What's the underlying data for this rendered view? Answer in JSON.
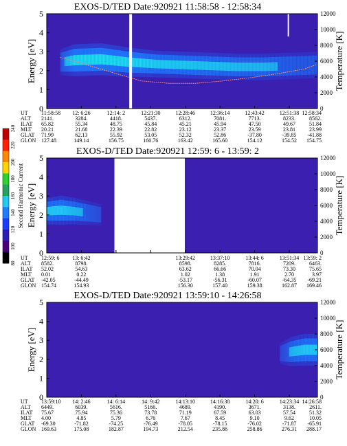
{
  "colors": {
    "background": "#3a1fb0",
    "band_core": "#20d8f0",
    "band_mid": "#1f7bff",
    "band_edge": "#2a4de0",
    "temperature_trace": "#ff7f6a",
    "gap": "#ffffff"
  },
  "colorbar": {
    "label": "Second Harmonic Current",
    "ticks": [
      "80",
      "100",
      "120",
      "140",
      "160",
      "180",
      "200",
      "220",
      "240"
    ],
    "colors": [
      "#000000",
      "#4a007a",
      "#2c1fb5",
      "#1a3cff",
      "#1f7bff",
      "#21c8f0",
      "#2aa060",
      "#2fd02f",
      "#ffd400",
      "#ff8800",
      "#ff2000",
      "#c00000"
    ]
  },
  "chart_data": [
    {
      "type": "heatmap",
      "title": "EXOS-D/TED   Date:920921   11:58:58 - 12:58:34",
      "ylabel": "Energy [eV]",
      "ylabel_right": "Temperature [K]",
      "ylim": [
        0,
        5
      ],
      "ylim_right": [
        0,
        12000
      ],
      "yticks": [
        "0",
        "1",
        "2",
        "3",
        "4",
        "5"
      ],
      "yticks_right": [
        "0",
        "2000",
        "4000",
        "6000",
        "8000",
        "10000",
        "12000"
      ],
      "band": {
        "x": [
          0.05,
          0.1,
          0.2,
          0.3,
          0.4,
          0.5,
          0.6,
          0.7,
          0.8,
          0.9,
          1.0
        ],
        "center": [
          2.45,
          2.55,
          2.6,
          2.45,
          2.35,
          2.3,
          2.25,
          2.2,
          2.2,
          2.25,
          2.3
        ],
        "half_width": [
          0.5,
          0.6,
          0.6,
          0.55,
          0.5,
          0.5,
          0.5,
          0.5,
          0.5,
          0.5,
          0.5
        ],
        "strength": [
          0.5,
          0.95,
          1.0,
          0.95,
          0.85,
          0.8,
          0.75,
          0.7,
          0.65,
          0.55,
          0.5
        ]
      },
      "gaps": [
        [
          0.305,
          0.315,
          0,
          5
        ],
        [
          0.89,
          0.895,
          3.8,
          5
        ]
      ],
      "temperature": {
        "x": [
          0.05,
          0.15,
          0.25,
          0.35,
          0.45,
          0.55,
          0.65,
          0.75,
          0.85,
          0.95,
          1.0
        ],
        "y": [
          6500,
          5500,
          4500,
          3500,
          3200,
          3200,
          3500,
          3900,
          4400,
          5000,
          5600
        ]
      },
      "rows": [
        {
          "label": "UT",
          "values": [
            "11:58:58",
            "12: 6:26",
            "12:14: 2",
            "12:21:30",
            "12:28:46",
            "12:36:14",
            "12:43:42",
            "12:51:38",
            "12:58:34"
          ]
        },
        {
          "label": "ALT",
          "values": [
            "2141.",
            "3284.",
            "4418.",
            "5437.",
            "6312.",
            "7081.",
            "7713.",
            "8233.",
            "8562."
          ]
        },
        {
          "label": "ILAT",
          "values": [
            "65.82",
            "55.34",
            "48.75",
            "45.84",
            "45.21",
            "45.94",
            "47.50",
            "49.67",
            "51.84"
          ]
        },
        {
          "label": "MLT",
          "values": [
            "20.21",
            "21.68",
            "22.39",
            "22.82",
            "23.12",
            "23.37",
            "23.59",
            "23.81",
            "23.99"
          ]
        },
        {
          "label": "GLAT",
          "values": [
            "71.99",
            "62.13",
            "55.92",
            "53.05",
            "52.32",
            "52.86",
            "-37.80",
            "-39.85",
            "-41.88"
          ]
        },
        {
          "label": "GLON",
          "values": [
            "127.48",
            "149.14",
            "156.75",
            "160.76",
            "163.42",
            "165.60",
            "154.12",
            "154.52",
            "154.75"
          ]
        }
      ]
    },
    {
      "type": "heatmap",
      "title": "EXOS-D/TED   Date:920921   12:59: 6 - 13:59: 2",
      "ylabel": "Energy [eV]",
      "ylabel_right": "Temperature [K]",
      "ylim": [
        0,
        5
      ],
      "ylim_right": [
        0,
        12000
      ],
      "yticks": [
        "0",
        "1",
        "2",
        "3",
        "4",
        "5"
      ],
      "yticks_right": [
        "0",
        "2000",
        "4000",
        "6000",
        "8000",
        "10000",
        "12000"
      ],
      "band": {
        "x": [
          0.0,
          0.05,
          0.1,
          0.15,
          0.2
        ],
        "center": [
          2.2,
          2.25,
          2.2,
          2.1,
          2.0
        ],
        "half_width": [
          0.5,
          0.55,
          0.5,
          0.45,
          0.4
        ],
        "strength": [
          0.8,
          0.85,
          0.7,
          0.55,
          0.4
        ]
      },
      "gaps": [
        [
          0.25,
          0.51,
          0,
          5
        ]
      ],
      "temperature": null,
      "rows": [
        {
          "label": "UT",
          "values": [
            "12:59: 6",
            "13: 6:42",
            "",
            "",
            "13:29:42",
            "13:37:10",
            "13:44: 6",
            "13:51:34",
            "13:59: 2"
          ]
        },
        {
          "label": "ALT",
          "values": [
            "8582.",
            "8798.",
            "",
            "",
            "8598.",
            "8285.",
            "7816.",
            "7209.",
            "6463."
          ]
        },
        {
          "label": "ILAT",
          "values": [
            "52.02",
            "54.63",
            "",
            "",
            "63.62",
            "66.66",
            "70.04",
            "73.30",
            "75.65"
          ]
        },
        {
          "label": "MLT",
          "values": [
            "0.01",
            "0.22",
            "",
            "",
            "1.02",
            "1.38",
            "1.91",
            "2.70",
            "3.97"
          ]
        },
        {
          "label": "GLAT",
          "values": [
            "-42.05",
            "-44.49",
            "",
            "",
            "-53.17",
            "-56.31",
            "-60.07",
            "-64.35",
            "-69.21"
          ]
        },
        {
          "label": "GLON",
          "values": [
            "154.74",
            "154.93",
            "",
            "",
            "156.30",
            "157.40",
            "159.38",
            "162.87",
            "169.46"
          ]
        }
      ]
    },
    {
      "type": "heatmap",
      "title": "EXOS-D/TED   Date:920921   13:59:10 - 14:26:58",
      "ylabel": "Energy [eV]",
      "ylabel_right": "Temperature [K]",
      "ylim": [
        0,
        5
      ],
      "ylim_right": [
        0,
        12000
      ],
      "yticks": [
        "0",
        "1",
        "2",
        "3",
        "4",
        "5"
      ],
      "yticks_right": [
        "0",
        "2000",
        "4000",
        "6000",
        "8000",
        "10000",
        "12000"
      ],
      "band": {
        "x": [
          0.86,
          0.9,
          0.95,
          1.0
        ],
        "center": [
          2.3,
          2.4,
          2.5,
          2.5
        ],
        "half_width": [
          0.4,
          0.55,
          0.6,
          0.6
        ],
        "strength": [
          0.35,
          0.65,
          0.85,
          0.8
        ]
      },
      "gaps": [],
      "temperature": null,
      "rows": [
        {
          "label": "UT",
          "values": [
            "13:59:10",
            "14: 2:46",
            "14: 6:14",
            "14: 9:42",
            "14:13:10",
            "14:16:38",
            "14:20: 6",
            "14:23:34",
            "14:26:58"
          ]
        },
        {
          "label": "ALT",
          "values": [
            "6449.",
            "6039.",
            "5616.",
            "5166.",
            "4689.",
            "4190.",
            "3671.",
            "3138.",
            "2611."
          ]
        },
        {
          "label": "ILAT",
          "values": [
            "75.67",
            "75.94",
            "75.36",
            "73.78",
            "71.19",
            "67.59",
            "63.03",
            "57.54",
            "51.32"
          ]
        },
        {
          "label": "MLT",
          "values": [
            "4.00",
            "4.85",
            "5.79",
            "6.76",
            "7.67",
            "8.45",
            "9.10",
            "9.62",
            "10.05"
          ]
        },
        {
          "label": "GLAT",
          "values": [
            "-69.30",
            "-71.82",
            "-74.25",
            "-76.49",
            "-78.05",
            "-78.15",
            "-76.02",
            "-71.87",
            "-65.91"
          ]
        },
        {
          "label": "GLON",
          "values": [
            "169.63",
            "175.08",
            "182.87",
            "194.73",
            "212.54",
            "235.86",
            "258.86",
            "276.31",
            "288.17"
          ]
        }
      ]
    }
  ]
}
